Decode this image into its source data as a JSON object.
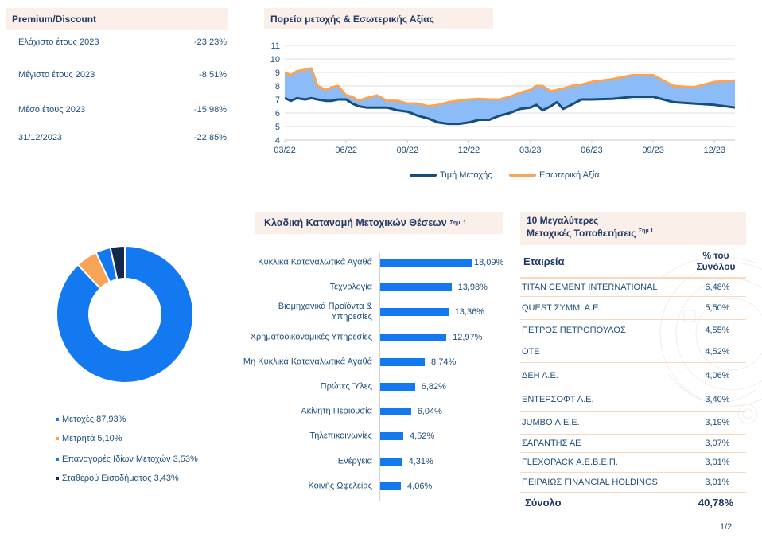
{
  "premium_discount": {
    "title": "Premium/Discount",
    "rows": [
      {
        "label": "Ελάχιστο έτους 2023",
        "value": "-23,23%"
      },
      {
        "label": "Μέγιστο έτους 2023",
        "value": "-8,51%"
      },
      {
        "label": "Μέσο έτους 2023",
        "value": "-15,98%"
      },
      {
        "label": "31/12/2023",
        "value": "-22,85%"
      }
    ]
  },
  "chart_data": [
    {
      "type": "area",
      "title": "Πορεία μετοχής & Εσωτερικής Αξίας",
      "xlabel": "",
      "ylabel": "",
      "ylim": [
        4,
        11
      ],
      "yticks": [
        "4",
        "5",
        "6",
        "7",
        "8",
        "9",
        "10",
        "11"
      ],
      "xticks": [
        "03/22",
        "06/22",
        "09/22",
        "12/22",
        "03/23",
        "06/23",
        "09/23",
        "12/23"
      ],
      "grid": true,
      "legend": "bottom",
      "x_months": [
        0,
        0.3,
        0.6,
        1,
        1.3,
        1.6,
        2,
        2.3,
        2.6,
        3,
        3.3,
        3.6,
        4,
        4.5,
        5,
        5.5,
        6,
        6.5,
        7,
        7.5,
        8,
        8.5,
        9,
        9.5,
        10,
        10.5,
        11,
        11.5,
        12,
        12.3,
        12.6,
        13,
        13.3,
        13.6,
        14,
        14.5,
        15,
        16,
        17,
        18,
        19,
        20,
        21,
        22
      ],
      "series": [
        {
          "name": "Τιμή Μετοχής",
          "color": "#154d7d",
          "values": [
            7.1,
            6.9,
            7.1,
            7.0,
            7.1,
            7.0,
            6.9,
            6.9,
            7.0,
            7.0,
            6.7,
            6.5,
            6.4,
            6.4,
            6.4,
            6.2,
            6.1,
            5.8,
            5.6,
            5.3,
            5.2,
            5.2,
            5.3,
            5.5,
            5.5,
            5.8,
            6.0,
            6.3,
            6.4,
            6.6,
            6.2,
            6.5,
            6.8,
            6.3,
            6.6,
            7.0,
            7.0,
            7.05,
            7.2,
            7.2,
            6.8,
            6.7,
            6.6,
            6.4
          ]
        },
        {
          "name": "Εσωτερική Αξία",
          "color": "#f9a356",
          "values": [
            9.0,
            8.8,
            9.1,
            9.2,
            9.3,
            8.0,
            7.7,
            7.9,
            8.0,
            7.3,
            7.2,
            6.9,
            7.1,
            7.3,
            6.9,
            6.9,
            6.7,
            6.7,
            6.5,
            6.6,
            6.8,
            6.9,
            7.0,
            7.05,
            7.0,
            7.0,
            7.2,
            7.5,
            7.7,
            8.0,
            8.0,
            7.6,
            7.7,
            7.8,
            8.0,
            8.1,
            8.3,
            8.5,
            8.8,
            8.8,
            8.0,
            7.9,
            8.3,
            8.4
          ]
        }
      ]
    },
    {
      "type": "pie",
      "title": "",
      "categories": [
        "Μετοχές",
        "Μετρητά",
        "Επαναγορές Ιδίων Μετοχών",
        "Σταθερού Εισοδήματος"
      ],
      "values": [
        87.93,
        5.1,
        3.53,
        3.43
      ],
      "labels": [
        "Μετοχές 87,93%",
        "Μετρητά 5,10%",
        "Επαναγορές Ιδίων Μετοχών 3,53%",
        "Σταθερού Εισοδήματος 3,43%"
      ],
      "colors": [
        "#1279f0",
        "#f9a356",
        "#1279f0",
        "#14284b"
      ],
      "legend": "bottom"
    },
    {
      "type": "bar",
      "title": "Κλαδική Κατανομή Μετοχικών Θέσεων",
      "title_note": "Σημ. 1",
      "orientation": "horizontal",
      "categories": [
        "Κυκλικά Καταναλωτικά Αγαθά",
        "Τεχνολογία",
        "Βιομηχανικά Προϊόντα & Υπηρεσίες",
        "Χρηματοοικονομικές Υπηρεσίες",
        "Μη Κυκλικά Καταναλωτικά Αγαθά",
        "Πρώτες Ύλες",
        "Ακίνητη Περιουσία",
        "Τηλεπικοινωνίες",
        "Ενέργεια",
        "Κοινής Ωφελείας"
      ],
      "values": [
        18.09,
        13.98,
        13.36,
        12.97,
        8.74,
        6.82,
        6.04,
        4.52,
        4.31,
        4.06
      ],
      "labels": [
        "18,09%",
        "13,98%",
        "13,36%",
        "12,97%",
        "8,74%",
        "6,82%",
        "6,04%",
        "4,52%",
        "4,31%",
        "4,06%"
      ],
      "color": "#1279f0"
    }
  ],
  "top10": {
    "title_line1": "10 Μεγαλύτερες",
    "title_line2": "Μετοχικές Τοποθετήσεις",
    "title_note": "Σημ.1",
    "col_company": "Εταιρεία",
    "col_pct_line1": "% του",
    "col_pct_line2": "Συνόλου",
    "rows": [
      {
        "company": "TITAN CEMENT INTERNATIONAL",
        "pct": "6,48%"
      },
      {
        "company": "QUEST ΣΥΜΜ. Α.Ε.",
        "pct": "5,50%"
      },
      {
        "company": "ΠΕΤΡΟΣ ΠΕΤΡΟΠΟΥΛΟΣ",
        "pct": "4,55%"
      },
      {
        "company": "ΟΤΕ",
        "pct": "4,52%"
      },
      {
        "company": "ΔΕΗ Α.Ε.",
        "pct": "4,06%"
      },
      {
        "company": "ΕΝΤΕΡΣΟΦΤ Α.Ε.",
        "pct": "3,40%"
      },
      {
        "company": "JUMBO Α.Ε.Ε.",
        "pct": "3,19%"
      },
      {
        "company": "ΣΑΡΑΝΤΗΣ ΑΕ",
        "pct": "3,07%"
      },
      {
        "company": "FLEXOPACK Α.Ε.Β.Ε.Π.",
        "pct": "3,01%"
      },
      {
        "company": "ΠΕΙΡΑΙΩΣ FINANCIAL HOLDINGS",
        "pct": "3,01%"
      }
    ],
    "total_label": "Σύνολο",
    "total_value": "40,78%"
  },
  "page_number": "1/2"
}
